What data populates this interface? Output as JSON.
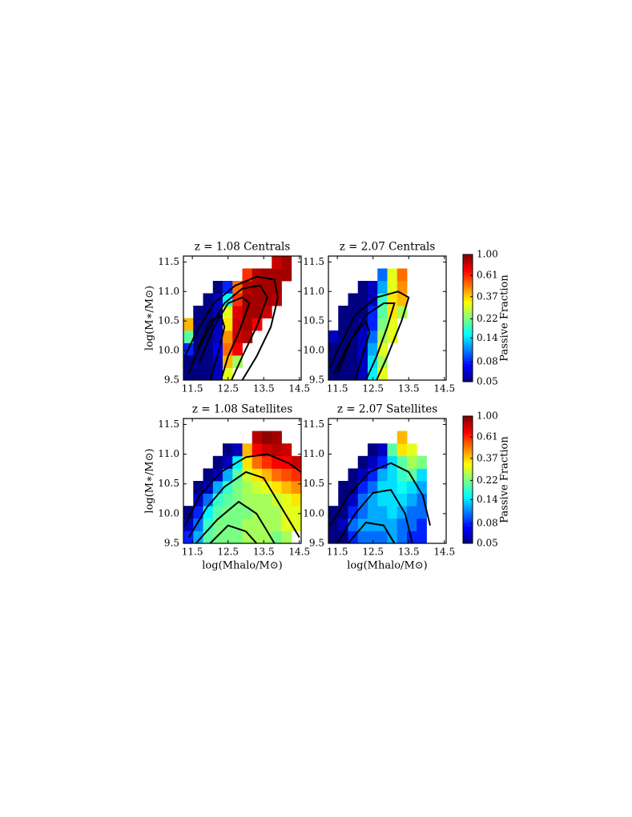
{
  "chart_data": [
    {
      "type": "heatmap",
      "title": "z = 1.08   Centrals",
      "ylabel": "log(M∗/M⊙)",
      "xlim": [
        11.25,
        14.55
      ],
      "ylim": [
        9.5,
        11.6
      ],
      "xticks": [
        11.5,
        12.5,
        13.5,
        14.5
      ],
      "yticks": [
        9.5,
        {
          "value": 10,
          "label": "10.0"
        },
        10.5,
        {
          "value": 11,
          "label": "11.0"
        },
        11.5
      ],
      "xbins": [
        11.25,
        11.525,
        11.8,
        12.075,
        12.35,
        12.625,
        12.9,
        13.175,
        13.45,
        13.725,
        14.0,
        14.275,
        14.55
      ],
      "ybins": [
        9.5,
        9.71,
        9.92,
        10.13,
        10.34,
        10.55,
        10.76,
        10.97,
        11.18,
        11.39,
        11.6
      ],
      "z": [
        [
          0.05,
          0.05,
          0.05,
          0.06,
          0.3,
          null,
          null,
          null,
          null,
          null,
          null,
          null
        ],
        [
          0.05,
          0.05,
          0.05,
          0.06,
          0.4,
          0.25,
          null,
          null,
          null,
          null,
          null,
          null
        ],
        [
          0.08,
          0.05,
          0.05,
          0.07,
          0.5,
          0.7,
          null,
          null,
          null,
          null,
          null,
          null
        ],
        [
          0.2,
          0.05,
          0.05,
          0.06,
          0.45,
          0.8,
          0.85,
          null,
          null,
          null,
          null,
          null
        ],
        [
          0.4,
          0.05,
          0.05,
          0.06,
          0.35,
          0.8,
          0.9,
          0.7,
          null,
          null,
          null,
          null
        ],
        [
          null,
          0.05,
          0.05,
          0.06,
          0.3,
          0.75,
          0.9,
          0.9,
          0.8,
          null,
          null,
          null
        ],
        [
          null,
          null,
          0.05,
          0.06,
          0.15,
          0.6,
          0.9,
          0.9,
          0.9,
          0.85,
          null,
          null
        ],
        [
          null,
          null,
          null,
          0.05,
          0.08,
          0.5,
          0.85,
          0.9,
          0.9,
          0.9,
          null,
          null
        ],
        [
          null,
          null,
          null,
          null,
          null,
          null,
          0.6,
          0.85,
          0.9,
          0.9,
          0.9,
          null
        ],
        [
          null,
          null,
          null,
          null,
          null,
          null,
          null,
          null,
          null,
          0.8,
          0.9,
          null
        ]
      ],
      "contours": [
        {
          "x": [
            12.9,
            13.3,
            13.7,
            13.9,
            13.8,
            13.3,
            12.7,
            12.1,
            11.6,
            11.3
          ],
          "y": [
            9.5,
            9.9,
            10.4,
            10.9,
            11.2,
            11.25,
            11.1,
            10.8,
            10.3,
            9.9
          ]
        },
        {
          "x": [
            12.6,
            12.9,
            13.3,
            13.6,
            13.4,
            12.9,
            12.4,
            11.9,
            11.5
          ],
          "y": [
            9.5,
            9.9,
            10.4,
            10.9,
            11.1,
            11.05,
            10.8,
            10.3,
            9.8
          ]
        },
        {
          "x": [
            12.3,
            12.5,
            12.8,
            13.1,
            12.9,
            12.5,
            12.1,
            11.7
          ],
          "y": [
            9.5,
            9.9,
            10.3,
            10.8,
            10.9,
            10.8,
            10.4,
            9.8
          ]
        },
        {
          "x": [
            12.0,
            12.2,
            12.4,
            12.3,
            12.0,
            11.7,
            11.4
          ],
          "y": [
            9.5,
            9.9,
            10.4,
            10.6,
            10.5,
            10.1,
            9.6
          ]
        }
      ]
    },
    {
      "type": "heatmap",
      "title": "z = 2.07   Centrals",
      "xlim": [
        11.25,
        14.55
      ],
      "ylim": [
        9.5,
        11.6
      ],
      "xticks": [
        11.5,
        12.5,
        13.5,
        14.5
      ],
      "yticks": [
        9.5,
        {
          "value": 10,
          "label": "10.0"
        },
        10.5,
        {
          "value": 11,
          "label": "11.0"
        },
        11.5
      ],
      "xbins": [
        11.25,
        11.525,
        11.8,
        12.075,
        12.35,
        12.625,
        12.9,
        13.175,
        13.45,
        13.725,
        14.0,
        14.275,
        14.55
      ],
      "ybins": [
        9.5,
        9.71,
        9.92,
        10.13,
        10.34,
        10.55,
        10.76,
        10.97,
        11.18,
        11.39,
        11.6
      ],
      "z": [
        [
          0.05,
          0.05,
          0.05,
          0.06,
          0.15,
          0.3,
          null,
          null,
          null,
          null,
          null,
          null
        ],
        [
          0.05,
          0.05,
          0.05,
          0.06,
          0.14,
          0.25,
          null,
          null,
          null,
          null,
          null,
          null
        ],
        [
          0.05,
          0.05,
          0.05,
          0.06,
          0.12,
          0.3,
          null,
          null,
          null,
          null,
          null,
          null
        ],
        [
          0.06,
          0.05,
          0.05,
          0.06,
          0.1,
          0.25,
          0.3,
          null,
          null,
          null,
          null,
          null
        ],
        [
          null,
          0.05,
          0.05,
          0.06,
          0.08,
          0.22,
          0.3,
          null,
          null,
          null,
          null,
          null
        ],
        [
          null,
          0.05,
          0.05,
          0.05,
          0.08,
          0.2,
          0.35,
          0.25,
          null,
          null,
          null,
          null
        ],
        [
          null,
          null,
          0.05,
          0.05,
          0.06,
          0.18,
          0.35,
          0.4,
          null,
          null,
          null,
          null
        ],
        [
          null,
          null,
          null,
          0.05,
          0.06,
          0.12,
          0.3,
          0.45,
          null,
          null,
          null,
          null
        ],
        [
          null,
          null,
          null,
          null,
          null,
          0.1,
          0.3,
          0.5,
          null,
          null,
          null,
          null
        ],
        [
          null,
          null,
          null,
          null,
          null,
          null,
          null,
          null,
          null,
          null,
          null,
          null
        ]
      ],
      "contours": [
        {
          "x": [
            12.6,
            12.9,
            13.3,
            13.5,
            13.2,
            12.6,
            12.0,
            11.5,
            11.3
          ],
          "y": [
            9.5,
            9.9,
            10.5,
            10.9,
            11.0,
            10.9,
            10.6,
            10.0,
            9.7
          ]
        },
        {
          "x": [
            12.3,
            12.6,
            12.9,
            13.1,
            12.8,
            12.3,
            11.8,
            11.4
          ],
          "y": [
            9.5,
            9.9,
            10.4,
            10.8,
            10.8,
            10.6,
            10.1,
            9.6
          ]
        },
        {
          "x": [
            12.0,
            12.2,
            12.4,
            12.3,
            11.9,
            11.5
          ],
          "y": [
            9.5,
            9.9,
            10.3,
            10.5,
            10.2,
            9.6
          ]
        }
      ],
      "colorbar": {
        "label": "Passive Fraction",
        "lim": [
          0.05,
          1
        ],
        "log": true,
        "colormap": "jet",
        "ticks": [
          {
            "value": 1,
            "label": "1.00"
          },
          0.61,
          0.37,
          0.22,
          0.14,
          0.08,
          0.05
        ]
      }
    },
    {
      "type": "heatmap",
      "title": "z = 1.08   Satellites",
      "ylabel": "log(M∗/M⊙)",
      "xlabel": "log(Mhalo/M⊙)",
      "xlim": [
        11.25,
        14.55
      ],
      "ylim": [
        9.5,
        11.6
      ],
      "xticks": [
        11.5,
        12.5,
        13.5,
        14.5
      ],
      "yticks": [
        9.5,
        {
          "value": 10,
          "label": "10.0"
        },
        10.5,
        {
          "value": 11,
          "label": "11.0"
        },
        11.5
      ],
      "xbins": [
        11.25,
        11.525,
        11.8,
        12.075,
        12.35,
        12.625,
        12.9,
        13.175,
        13.45,
        13.725,
        14.0,
        14.275,
        14.55
      ],
      "ybins": [
        9.5,
        9.71,
        9.92,
        10.13,
        10.34,
        10.55,
        10.76,
        10.97,
        11.18,
        11.39,
        11.6
      ],
      "z": [
        [
          0.08,
          0.12,
          0.2,
          0.22,
          0.22,
          0.22,
          0.25,
          0.25,
          0.25,
          0.22,
          0.25,
          null
        ],
        [
          0.06,
          0.1,
          0.18,
          0.22,
          0.22,
          0.22,
          0.25,
          0.25,
          0.25,
          0.25,
          0.3,
          0.3
        ],
        [
          0.05,
          0.08,
          0.15,
          0.2,
          0.22,
          0.22,
          0.22,
          0.25,
          0.25,
          0.25,
          0.3,
          0.3
        ],
        [
          null,
          0.06,
          0.1,
          0.18,
          0.2,
          0.22,
          0.25,
          0.25,
          0.25,
          0.28,
          0.3,
          0.35
        ],
        [
          null,
          0.05,
          0.06,
          0.12,
          0.18,
          0.22,
          0.25,
          0.28,
          0.3,
          0.35,
          0.4,
          0.45
        ],
        [
          null,
          null,
          0.05,
          0.06,
          0.12,
          0.2,
          0.28,
          0.35,
          0.4,
          0.5,
          0.55,
          0.6
        ],
        [
          null,
          null,
          null,
          0.05,
          0.06,
          0.15,
          0.35,
          0.5,
          0.6,
          0.7,
          0.7,
          0.8
        ],
        [
          null,
          null,
          null,
          null,
          0.05,
          0.06,
          0.4,
          0.7,
          0.8,
          0.85,
          0.8,
          null
        ],
        [
          null,
          null,
          null,
          null,
          null,
          null,
          null,
          0.85,
          0.95,
          0.9,
          null,
          null
        ],
        [
          null,
          null,
          null,
          null,
          null,
          null,
          null,
          null,
          null,
          null,
          null,
          null
        ]
      ],
      "contours": [
        {
          "x": [
            11.3,
            11.7,
            12.3,
            13.0,
            13.6,
            14.2,
            14.55
          ],
          "y": [
            9.8,
            10.3,
            10.7,
            10.95,
            11.0,
            10.85,
            10.7
          ]
        },
        {
          "x": [
            11.4,
            11.9,
            12.4,
            13.0,
            13.5,
            13.9,
            14.3,
            14.5
          ],
          "y": [
            9.6,
            10.1,
            10.45,
            10.7,
            10.6,
            10.2,
            9.8,
            9.6
          ]
        },
        {
          "x": [
            11.6,
            12.2,
            12.8,
            13.3,
            13.6,
            13.8
          ],
          "y": [
            9.5,
            9.9,
            10.2,
            10.0,
            9.7,
            9.5
          ]
        },
        {
          "x": [
            12.0,
            12.5,
            13.0,
            13.3
          ],
          "y": [
            9.5,
            9.8,
            9.7,
            9.5
          ]
        }
      ]
    },
    {
      "type": "heatmap",
      "title": "z = 2.07   Satellites",
      "xlabel": "log(Mhalo/M⊙)",
      "xlim": [
        11.25,
        14.55
      ],
      "ylim": [
        9.5,
        11.6
      ],
      "xticks": [
        11.5,
        12.5,
        13.5,
        14.5
      ],
      "yticks": [
        9.5,
        {
          "value": 10,
          "label": "10.0"
        },
        10.5,
        {
          "value": 11,
          "label": "11.0"
        },
        11.5
      ],
      "xbins": [
        11.25,
        11.525,
        11.8,
        12.075,
        12.35,
        12.625,
        12.9,
        13.175,
        13.45,
        13.725,
        14.0,
        14.275,
        14.55
      ],
      "ybins": [
        9.5,
        9.71,
        9.92,
        10.13,
        10.34,
        10.55,
        10.76,
        10.97,
        11.18,
        11.39,
        11.6
      ],
      "z": [
        [
          0.05,
          0.05,
          0.08,
          0.1,
          0.1,
          0.1,
          0.12,
          0.1,
          0.08,
          0.08,
          null,
          null
        ],
        [
          0.05,
          0.06,
          0.1,
          0.12,
          0.12,
          0.12,
          0.12,
          0.1,
          0.1,
          0.08,
          null,
          null
        ],
        [
          0.05,
          0.05,
          0.08,
          0.1,
          0.12,
          0.12,
          0.14,
          0.12,
          0.1,
          0.1,
          null,
          null
        ],
        [
          null,
          0.05,
          0.06,
          0.1,
          0.12,
          0.14,
          0.14,
          0.14,
          0.12,
          0.1,
          null,
          null
        ],
        [
          null,
          0.05,
          0.05,
          0.08,
          0.1,
          0.14,
          0.14,
          0.16,
          0.14,
          0.12,
          null,
          null
        ],
        [
          null,
          null,
          0.05,
          0.06,
          0.08,
          0.12,
          0.14,
          0.18,
          0.2,
          0.14,
          null,
          null
        ],
        [
          null,
          null,
          null,
          0.05,
          0.06,
          0.08,
          0.14,
          0.2,
          0.25,
          0.22,
          null,
          null
        ],
        [
          null,
          null,
          null,
          null,
          0.05,
          0.06,
          0.2,
          0.35,
          0.3,
          null,
          null,
          null
        ],
        [
          null,
          null,
          null,
          null,
          null,
          null,
          null,
          0.4,
          null,
          null,
          null,
          null
        ],
        [
          null,
          null,
          null,
          null,
          null,
          null,
          null,
          null,
          null,
          null,
          null,
          null
        ]
      ],
      "contours": [
        {
          "x": [
            11.3,
            11.8,
            12.4,
            13.0,
            13.5,
            13.9,
            14.1
          ],
          "y": [
            9.8,
            10.3,
            10.7,
            10.85,
            10.7,
            10.3,
            9.8
          ]
        },
        {
          "x": [
            11.5,
            12.0,
            12.5,
            13.0,
            13.4,
            13.6
          ],
          "y": [
            9.5,
            10.0,
            10.35,
            10.4,
            10.0,
            9.5
          ]
        },
        {
          "x": [
            11.8,
            12.3,
            12.8,
            13.1
          ],
          "y": [
            9.5,
            9.85,
            9.8,
            9.5
          ]
        }
      ],
      "colorbar": {
        "label": "Passive Fraction",
        "lim": [
          0.05,
          1
        ],
        "log": true,
        "colormap": "jet",
        "ticks": [
          {
            "value": 1,
            "label": "1.00"
          },
          0.61,
          0.37,
          0.22,
          0.14,
          0.08,
          0.05
        ]
      }
    }
  ]
}
